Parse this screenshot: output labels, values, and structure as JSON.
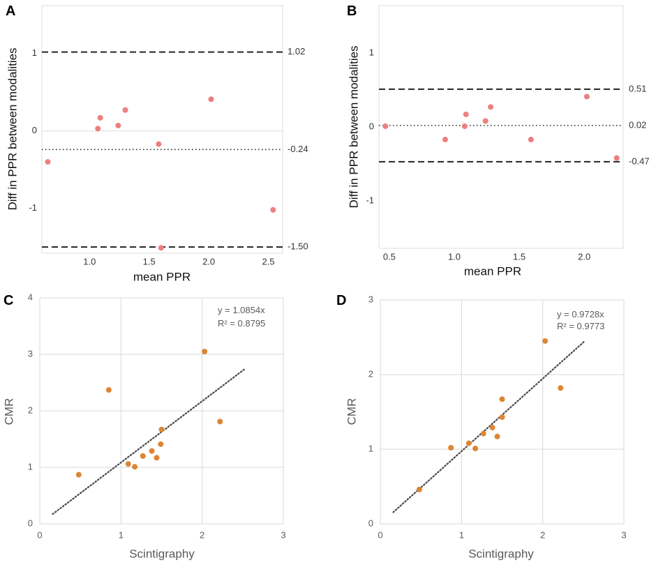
{
  "colors": {
    "ba_point": "#ee7f7f",
    "sc_point": "#dd8535",
    "ba_line": "#222222",
    "ba_text": "#333333",
    "sc_text": "#5a5a5a",
    "sc_grid": "#d9d9d9",
    "ba_frame": "#dddddd"
  },
  "chart_data": [
    {
      "panel_label": "A",
      "type": "scatter",
      "title": "",
      "xlabel": "mean PPR",
      "ylabel": "Diff in PPR between modalities",
      "xlim": [
        0.6,
        2.62
      ],
      "ylim": [
        -1.58,
        1.62
      ],
      "xticks": [
        1.0,
        1.5,
        2.0,
        2.5
      ],
      "xtick_labels": [
        "1.0",
        "1.5",
        "2.0",
        "2.5"
      ],
      "yticks": [
        -1,
        0,
        1
      ],
      "ytick_labels": [
        "-1",
        "0",
        "1"
      ],
      "points": [
        {
          "x": 0.65,
          "y": -0.4
        },
        {
          "x": 1.07,
          "y": 0.03
        },
        {
          "x": 1.09,
          "y": 0.17
        },
        {
          "x": 1.24,
          "y": 0.07
        },
        {
          "x": 1.3,
          "y": 0.27
        },
        {
          "x": 1.58,
          "y": -0.17
        },
        {
          "x": 1.6,
          "y": -1.51
        },
        {
          "x": 2.02,
          "y": 0.41
        },
        {
          "x": 2.54,
          "y": -1.02
        }
      ],
      "lines": [
        {
          "y": 1.02,
          "style": "dashed",
          "label": "1.02"
        },
        {
          "y": -0.24,
          "style": "dotted",
          "label": "-0.24"
        },
        {
          "y": -1.5,
          "style": "dashed",
          "label": "-1.50"
        }
      ]
    },
    {
      "panel_label": "B",
      "type": "scatter",
      "title": "",
      "xlabel": "mean PPR",
      "ylabel": "Diff in PPR between modalities",
      "xlim": [
        0.42,
        2.3
      ],
      "ylim": [
        -1.64,
        1.64
      ],
      "xticks": [
        0.5,
        1.0,
        1.5,
        2.0
      ],
      "xtick_labels": [
        "0.5",
        "1.0",
        "1.5",
        "2.0"
      ],
      "yticks": [
        -1,
        0,
        1
      ],
      "ytick_labels": [
        "-1",
        "0",
        "1"
      ],
      "points": [
        {
          "x": 0.47,
          "y": 0.01
        },
        {
          "x": 0.93,
          "y": -0.17
        },
        {
          "x": 1.08,
          "y": 0.01
        },
        {
          "x": 1.09,
          "y": 0.17
        },
        {
          "x": 1.24,
          "y": 0.08
        },
        {
          "x": 1.28,
          "y": 0.27
        },
        {
          "x": 1.59,
          "y": -0.17
        },
        {
          "x": 2.02,
          "y": 0.41
        },
        {
          "x": 2.25,
          "y": -0.42
        }
      ],
      "lines": [
        {
          "y": 0.51,
          "style": "dashed",
          "label": "0.51"
        },
        {
          "y": 0.02,
          "style": "dotted",
          "label": "0.02"
        },
        {
          "y": -0.47,
          "style": "dashed",
          "label": "-0.47"
        }
      ]
    },
    {
      "panel_label": "C",
      "type": "scatter",
      "title": "",
      "xlabel": "Scintigraphy",
      "ylabel": "CMR",
      "xlim": [
        0,
        3
      ],
      "ylim": [
        0,
        4
      ],
      "xticks": [
        0,
        1,
        2,
        3
      ],
      "xtick_labels": [
        "0",
        "1",
        "2",
        "3"
      ],
      "yticks": [
        0,
        1,
        2,
        3,
        4
      ],
      "ytick_labels": [
        "0",
        "1",
        "2",
        "3",
        "4"
      ],
      "grid": true,
      "points": [
        {
          "x": 0.48,
          "y": 0.87
        },
        {
          "x": 0.85,
          "y": 2.37
        },
        {
          "x": 1.09,
          "y": 1.06
        },
        {
          "x": 1.17,
          "y": 1.01
        },
        {
          "x": 1.27,
          "y": 1.2
        },
        {
          "x": 1.38,
          "y": 1.29
        },
        {
          "x": 1.44,
          "y": 1.17
        },
        {
          "x": 1.49,
          "y": 1.41
        },
        {
          "x": 1.5,
          "y": 1.67
        },
        {
          "x": 2.03,
          "y": 3.05
        },
        {
          "x": 2.22,
          "y": 1.81
        }
      ],
      "trendline": {
        "slope": 1.0854,
        "x_range": [
          0.16,
          2.52
        ],
        "style": "dotted"
      },
      "annotations": [
        "y = 1.0854x",
        "R² = 0.8795"
      ]
    },
    {
      "panel_label": "D",
      "type": "scatter",
      "title": "",
      "xlabel": "Scintigraphy",
      "ylabel": "CMR",
      "xlim": [
        0,
        3
      ],
      "ylim": [
        0,
        3
      ],
      "xticks": [
        0,
        1,
        2,
        3
      ],
      "xtick_labels": [
        "0",
        "1",
        "2",
        "3"
      ],
      "yticks": [
        0,
        1,
        2,
        3
      ],
      "ytick_labels": [
        "0",
        "1",
        "2",
        "3"
      ],
      "grid": true,
      "points": [
        {
          "x": 0.48,
          "y": 0.46
        },
        {
          "x": 0.87,
          "y": 1.02
        },
        {
          "x": 1.09,
          "y": 1.08
        },
        {
          "x": 1.17,
          "y": 1.01
        },
        {
          "x": 1.27,
          "y": 1.21
        },
        {
          "x": 1.38,
          "y": 1.29
        },
        {
          "x": 1.44,
          "y": 1.17
        },
        {
          "x": 1.5,
          "y": 1.43
        },
        {
          "x": 1.5,
          "y": 1.67
        },
        {
          "x": 2.03,
          "y": 2.45
        },
        {
          "x": 2.22,
          "y": 1.82
        }
      ],
      "trendline": {
        "slope": 0.9728,
        "x_range": [
          0.16,
          2.52
        ],
        "style": "dotted"
      },
      "annotations": [
        "y = 0.9728x",
        "R² = 0.9773"
      ]
    }
  ]
}
